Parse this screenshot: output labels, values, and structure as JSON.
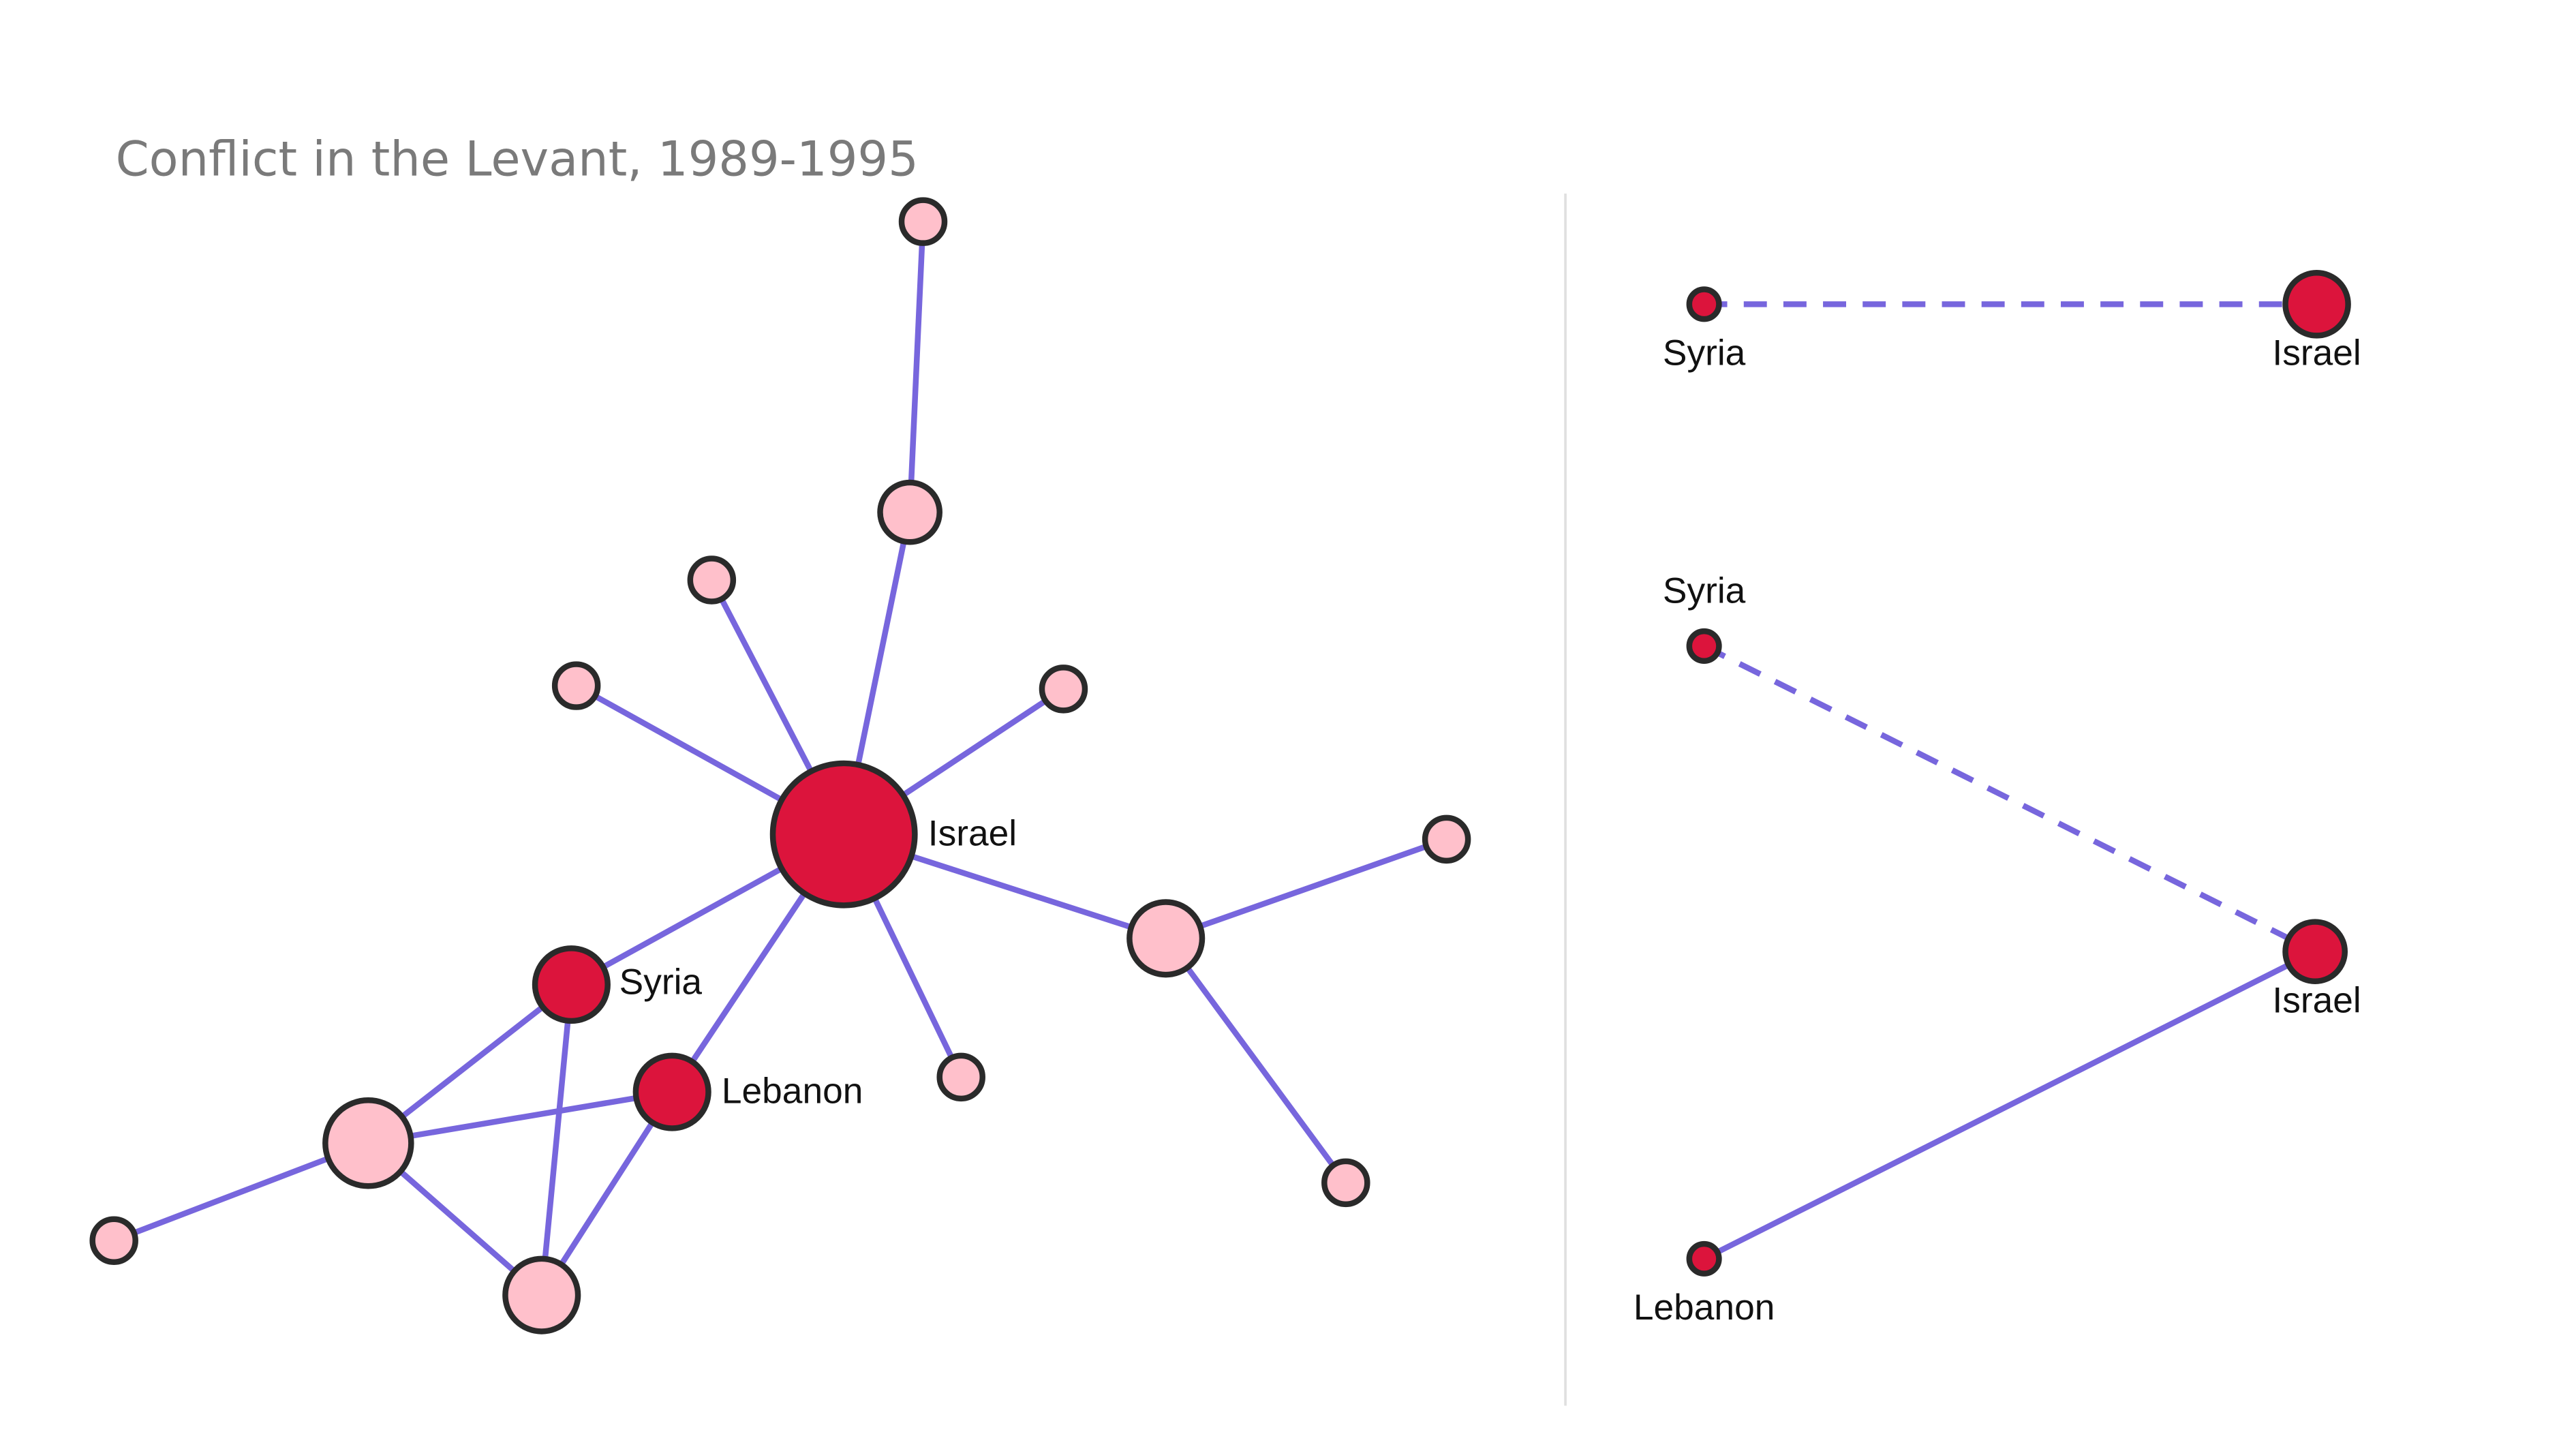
{
  "title": "Conflict in the Levant, 1989-1995",
  "network": {
    "nodes": [
      {
        "label": "Israel"
      },
      {
        "label": "Syria"
      },
      {
        "label": "Lebanon"
      }
    ]
  },
  "panel_top": {
    "nodes": [
      {
        "label": "Syria"
      },
      {
        "label": "Israel"
      }
    ]
  },
  "panel_bottom": {
    "nodes": [
      {
        "label": "Syria"
      },
      {
        "label": "Israel"
      },
      {
        "label": "Lebanon"
      }
    ]
  }
}
